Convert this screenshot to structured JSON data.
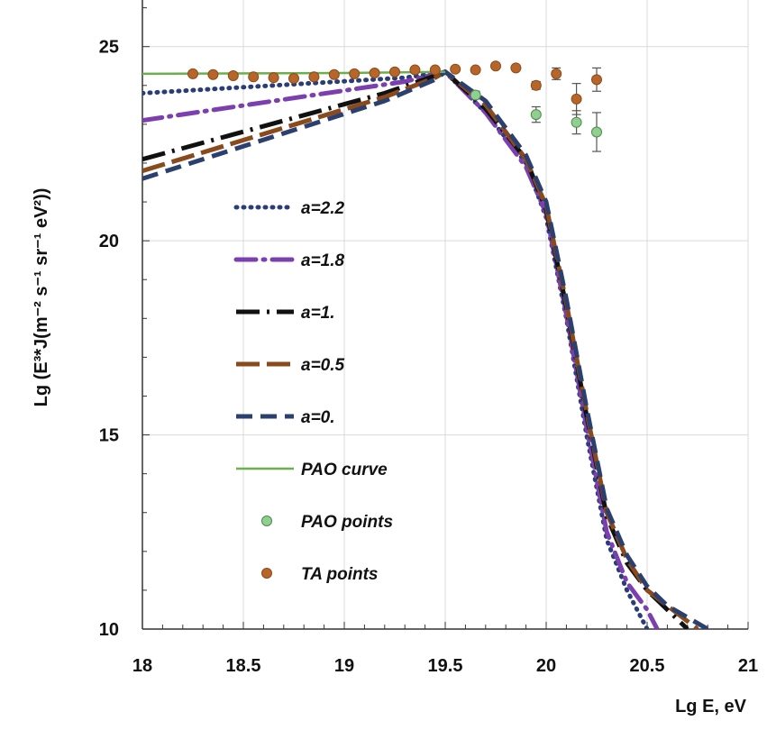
{
  "chart_data": {
    "type": "line",
    "xlabel": "Lg E, eV",
    "ylabel": "Lg (E³*J(m⁻² s⁻¹ sr⁻¹ eV²))",
    "xlim": [
      18,
      21
    ],
    "ylim": [
      10,
      26.2
    ],
    "x_ticks": [
      "18",
      "18.5",
      "19",
      "19.5",
      "20",
      "20.5",
      "21"
    ],
    "y_ticks": [
      "10",
      "15",
      "20",
      "25"
    ],
    "grid": true,
    "legend_position": "inside-left",
    "series": [
      {
        "name": "a=2.2",
        "style": "dotted",
        "color": "#2a3d7a",
        "x": [
          18.0,
          19.3,
          19.5,
          19.7,
          19.9,
          20.0,
          20.1,
          20.2,
          20.3,
          20.4,
          20.5
        ],
        "y": [
          23.8,
          24.2,
          24.35,
          23.3,
          22.0,
          20.6,
          18.0,
          15.0,
          12.3,
          11.0,
          10.0
        ]
      },
      {
        "name": "a=1.8",
        "style": "dashdot",
        "color": "#7b3fb0",
        "x": [
          18.0,
          19.3,
          19.5,
          19.7,
          19.9,
          20.0,
          20.1,
          20.2,
          20.3,
          20.4,
          20.5,
          20.55
        ],
        "y": [
          23.1,
          24.1,
          24.35,
          23.3,
          21.9,
          20.7,
          18.1,
          15.2,
          12.5,
          11.2,
          10.5,
          10.0
        ]
      },
      {
        "name": "a=1.",
        "style": "longdashdot",
        "color": "#111111",
        "x": [
          18.0,
          19.2,
          19.45,
          19.5,
          19.7,
          19.9,
          20.0,
          20.1,
          20.2,
          20.3,
          20.4,
          20.5,
          20.6,
          20.7
        ],
        "y": [
          22.1,
          23.8,
          24.25,
          24.35,
          23.4,
          22.1,
          20.8,
          18.3,
          15.5,
          12.9,
          11.7,
          11.0,
          10.5,
          10.0
        ]
      },
      {
        "name": "a=0.5",
        "style": "longdash",
        "color": "#8b4a1c",
        "x": [
          18.0,
          19.2,
          19.45,
          19.5,
          19.7,
          19.9,
          20.0,
          20.1,
          20.2,
          20.3,
          20.4,
          20.5,
          20.6,
          20.75
        ],
        "y": [
          21.8,
          23.7,
          24.2,
          24.35,
          23.5,
          22.1,
          20.9,
          18.4,
          15.6,
          13.0,
          11.8,
          11.0,
          10.6,
          10.0
        ]
      },
      {
        "name": "a=0.",
        "style": "dashed",
        "color": "#2c4070",
        "x": [
          18.0,
          19.2,
          19.45,
          19.5,
          19.7,
          19.9,
          20.0,
          20.1,
          20.2,
          20.3,
          20.4,
          20.5,
          20.6,
          20.8
        ],
        "y": [
          21.6,
          23.6,
          24.15,
          24.35,
          23.6,
          22.2,
          21.0,
          18.5,
          15.7,
          13.1,
          11.9,
          11.1,
          10.6,
          10.0
        ]
      },
      {
        "name": "PAO curve",
        "style": "solid",
        "color": "#6ab04c",
        "x": [
          18.0,
          19.0,
          19.5
        ],
        "y": [
          24.3,
          24.32,
          24.35
        ]
      }
    ],
    "points": [
      {
        "name": "PAO points",
        "color": "#8fcf8f",
        "edge": "#4d8a4d",
        "x": [
          19.65,
          19.95,
          20.15,
          20.25
        ],
        "y": [
          23.75,
          23.25,
          23.05,
          22.8
        ],
        "err": [
          0.1,
          0.2,
          0.3,
          0.5
        ]
      },
      {
        "name": "TA points",
        "color": "#b8652a",
        "edge": "#8b4a1c",
        "x": [
          18.25,
          18.35,
          18.45,
          18.55,
          18.65,
          18.75,
          18.85,
          18.95,
          19.05,
          19.15,
          19.25,
          19.35,
          19.45,
          19.55,
          19.65,
          19.75,
          19.85,
          19.95,
          20.05,
          20.15,
          20.25
        ],
        "y": [
          24.3,
          24.28,
          24.25,
          24.22,
          24.2,
          24.18,
          24.22,
          24.28,
          24.3,
          24.32,
          24.35,
          24.4,
          24.4,
          24.42,
          24.4,
          24.5,
          24.45,
          24.0,
          24.3,
          23.65,
          24.15
        ],
        "err": [
          0.05,
          0.05,
          0.05,
          0.05,
          0.05,
          0.05,
          0.05,
          0.05,
          0.05,
          0.05,
          0.05,
          0.05,
          0.05,
          0.05,
          0.05,
          0.05,
          0.05,
          0.1,
          0.15,
          0.4,
          0.3
        ]
      }
    ]
  }
}
